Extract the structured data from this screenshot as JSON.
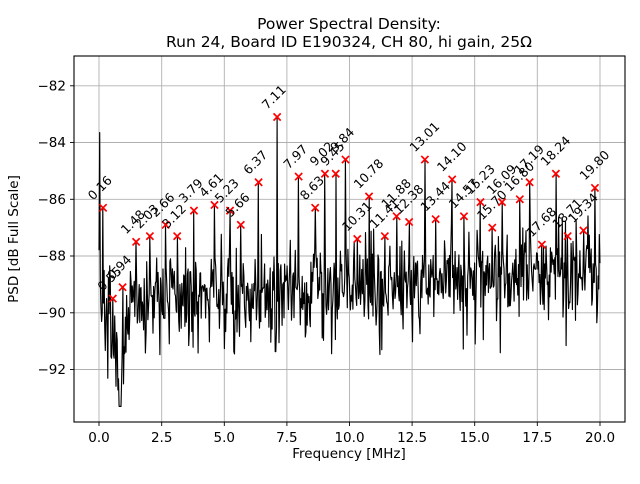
{
  "title": {
    "line1": "Power Spectral Density:",
    "line2": "Run 24, Board ID E190324, CH 80, hi gain, 25Ω"
  },
  "chart_data": {
    "type": "line",
    "xlabel": "Frequency [MHz]",
    "ylabel": "PSD [dB Full Scale]",
    "xlim": [
      -1,
      21
    ],
    "ylim": [
      -93.85,
      -80.95
    ],
    "grid": true,
    "grid_color": "#b0b0b0",
    "line_color": "#000000",
    "marker_color": "#ff0000",
    "marker_style": "x",
    "xticks": [
      0.0,
      2.5,
      5.0,
      7.5,
      10.0,
      12.5,
      15.0,
      17.5,
      20.0
    ],
    "xtick_labels": [
      "0.0",
      "2.5",
      "5.0",
      "7.5",
      "10.0",
      "12.5",
      "15.0",
      "17.5",
      "20.0"
    ],
    "yticks": [
      -82,
      -84,
      -86,
      -88,
      -90,
      -92
    ],
    "ytick_labels": [
      "−82",
      "−84",
      "−86",
      "−88",
      "−90",
      "−92"
    ],
    "noise_floor_approx_db": {
      "left": -89.7,
      "right": -88.2,
      "min": -93.3,
      "start_spike": -83.65
    },
    "peaks": [
      {
        "label": "0.16",
        "freq": 0.16,
        "db": -86.3
      },
      {
        "label": "0.55",
        "freq": 0.55,
        "db": -89.5
      },
      {
        "label": "0.94",
        "freq": 0.94,
        "db": -89.1
      },
      {
        "label": "1.48",
        "freq": 1.48,
        "db": -87.5
      },
      {
        "label": "2.03",
        "frefreq": null,
        "freq": 2.03,
        "db": -87.3
      },
      {
        "label": "2.66",
        "freq": 2.66,
        "db": -86.9
      },
      {
        "label": "3.12",
        "freq": 3.12,
        "db": -87.3
      },
      {
        "label": "3.79",
        "freq": 3.79,
        "db": -86.4
      },
      {
        "label": "4.61",
        "freq": 4.61,
        "db": -86.2
      },
      {
        "label": "5.23",
        "freq": 5.23,
        "db": -86.4
      },
      {
        "label": "5.66",
        "freq": 5.66,
        "db": -86.9
      },
      {
        "label": "6.37",
        "freq": 6.37,
        "db": -85.4
      },
      {
        "label": "7.11",
        "freq": 7.11,
        "db": -83.1
      },
      {
        "label": "7.97",
        "freq": 7.97,
        "db": -85.2
      },
      {
        "label": "8.63",
        "freq": 8.63,
        "db": -86.3
      },
      {
        "label": "9.02",
        "freq": 9.02,
        "db": -85.1
      },
      {
        "label": "9.45",
        "freq": 9.45,
        "db": -85.1
      },
      {
        "label": "9.84",
        "freq": 9.84,
        "db": -84.6
      },
      {
        "label": "10.31",
        "freq": 10.31,
        "db": -87.4
      },
      {
        "label": "10.78",
        "freq": 10.78,
        "db": -85.9
      },
      {
        "label": "11.41",
        "freq": 11.41,
        "db": -87.3
      },
      {
        "label": "11.88",
        "freq": 11.88,
        "db": -86.6
      },
      {
        "label": "12.38",
        "freq": 12.38,
        "db": -86.8
      },
      {
        "label": "13.01",
        "freq": 13.01,
        "db": -84.6
      },
      {
        "label": "13.44",
        "freq": 13.44,
        "db": -86.7
      },
      {
        "label": "14.10",
        "freq": 14.1,
        "db": -85.3
      },
      {
        "label": "14.57",
        "freq": 14.57,
        "db": -86.6
      },
      {
        "label": "15.23",
        "freq": 15.23,
        "db": -86.1
      },
      {
        "label": "15.70",
        "freq": 15.7,
        "db": -87.0
      },
      {
        "label": "16.09",
        "freq": 16.09,
        "db": -86.1
      },
      {
        "label": "16.80",
        "freq": 16.8,
        "db": -86.0
      },
      {
        "label": "17.19",
        "freq": 17.19,
        "db": -85.4
      },
      {
        "label": "17.68",
        "freq": 17.68,
        "db": -87.6
      },
      {
        "label": "18.24",
        "freq": 18.24,
        "db": -85.1
      },
      {
        "label": "18.71",
        "freq": 18.71,
        "db": -87.3
      },
      {
        "label": "19.34",
        "freq": 19.34,
        "db": -87.1
      },
      {
        "label": "19.80",
        "freq": 19.8,
        "db": -85.6
      }
    ]
  }
}
